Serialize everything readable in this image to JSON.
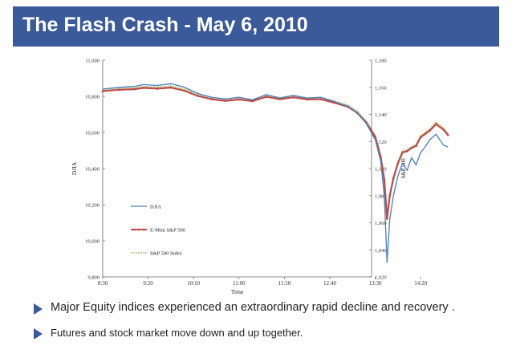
{
  "slide": {
    "title": "The Flash Crash - May 6, 2010",
    "bullets": [
      "Major Equity indices experienced an extraordinary rapid decline and recovery .",
      "Futures and stock market move down and up together."
    ],
    "accent_color": "#3b5a9a",
    "bullet_icon": "triangle-right-icon"
  },
  "chart_data": {
    "type": "line",
    "title": "",
    "xlabel": "Time",
    "ylabel": "DJIA",
    "y2label": "S&P 500",
    "x_ticks": [
      "8:30",
      "9:20",
      "10:10",
      "11:00",
      "11:50",
      "12:40",
      "13:30",
      "14:20"
    ],
    "ylim": [
      9800,
      11000
    ],
    "y_ticks": [
      "9,800",
      "10,000",
      "10,200",
      "10,400",
      "10,600",
      "10,800",
      "11,000"
    ],
    "y2lim": [
      1020,
      1180
    ],
    "y2_ticks": [
      "1,020",
      "1,040",
      "1,060",
      "1,080",
      "1,100",
      "1,120",
      "1,140",
      "1,160",
      "1,180"
    ],
    "grid": false,
    "legend_position": "lower-left",
    "series": [
      {
        "name": "DJIA",
        "axis": "left",
        "color": "#4a7ebb",
        "style": "solid",
        "points": [
          [
            "8:30",
            10840
          ],
          [
            "8:48",
            10850
          ],
          [
            "9:05",
            10855
          ],
          [
            "9:15",
            10865
          ],
          [
            "9:30",
            10860
          ],
          [
            "9:45",
            10870
          ],
          [
            "10:00",
            10850
          ],
          [
            "10:15",
            10815
          ],
          [
            "10:30",
            10795
          ],
          [
            "10:45",
            10785
          ],
          [
            "11:00",
            10795
          ],
          [
            "11:15",
            10780
          ],
          [
            "11:30",
            10810
          ],
          [
            "11:45",
            10790
          ],
          [
            "12:00",
            10805
          ],
          [
            "12:15",
            10790
          ],
          [
            "12:30",
            10795
          ],
          [
            "12:45",
            10770
          ],
          [
            "13:00",
            10745
          ],
          [
            "13:10",
            10710
          ],
          [
            "13:20",
            10650
          ],
          [
            "13:30",
            10560
          ],
          [
            "13:36",
            10440
          ],
          [
            "13:40",
            10250
          ],
          [
            "13:43",
            9880
          ],
          [
            "13:46",
            10120
          ],
          [
            "13:50",
            10250
          ],
          [
            "13:55",
            10360
          ],
          [
            "14:00",
            10430
          ],
          [
            "14:05",
            10390
          ],
          [
            "14:10",
            10460
          ],
          [
            "14:15",
            10420
          ],
          [
            "14:20",
            10490
          ],
          [
            "14:25",
            10520
          ],
          [
            "14:30",
            10560
          ],
          [
            "14:37",
            10590
          ],
          [
            "14:45",
            10530
          ],
          [
            "14:50",
            10520
          ]
        ]
      },
      {
        "name": "E-Mini S&P 500",
        "axis": "right",
        "color": "#be4b48",
        "style": "solid-markers",
        "points": [
          [
            "8:30",
            1157.2
          ],
          [
            "8:48",
            1158.2
          ],
          [
            "9:05",
            1158.6
          ],
          [
            "9:15",
            1159.6
          ],
          [
            "9:30",
            1159.0
          ],
          [
            "9:45",
            1159.8
          ],
          [
            "10:00",
            1157.4
          ],
          [
            "10:15",
            1153.6
          ],
          [
            "10:30",
            1151.2
          ],
          [
            "10:45",
            1150.0
          ],
          [
            "11:00",
            1151.0
          ],
          [
            "11:15",
            1149.8
          ],
          [
            "11:30",
            1153.0
          ],
          [
            "11:45",
            1151.2
          ],
          [
            "12:00",
            1152.6
          ],
          [
            "12:15",
            1151.0
          ],
          [
            "12:30",
            1151.2
          ],
          [
            "12:45",
            1148.6
          ],
          [
            "13:00",
            1145.6
          ],
          [
            "13:10",
            1141.2
          ],
          [
            "13:20",
            1134.0
          ],
          [
            "13:30",
            1123.4
          ],
          [
            "13:36",
            1108.4
          ],
          [
            "13:40",
            1091.6
          ],
          [
            "13:43",
            1063.0
          ],
          [
            "13:46",
            1080.0
          ],
          [
            "13:50",
            1092.8
          ],
          [
            "13:55",
            1104.0
          ],
          [
            "14:00",
            1112.0
          ],
          [
            "14:05",
            1112.8
          ],
          [
            "14:10",
            1115.2
          ],
          [
            "14:15",
            1116.8
          ],
          [
            "14:20",
            1123.2
          ],
          [
            "14:25",
            1125.6
          ],
          [
            "14:30",
            1128.0
          ],
          [
            "14:37",
            1132.8
          ],
          [
            "14:45",
            1128.8
          ],
          [
            "14:50",
            1124.8
          ]
        ]
      },
      {
        "name": "S&P 500 Index",
        "axis": "right",
        "color": "#98b954",
        "style": "dotted",
        "points": [
          [
            "8:30",
            1158.4
          ],
          [
            "8:48",
            1159.4
          ],
          [
            "9:05",
            1159.8
          ],
          [
            "9:15",
            1160.6
          ],
          [
            "9:30",
            1160.2
          ],
          [
            "9:45",
            1161.0
          ],
          [
            "10:00",
            1158.6
          ],
          [
            "10:15",
            1155.0
          ],
          [
            "10:30",
            1152.4
          ],
          [
            "10:45",
            1151.4
          ],
          [
            "11:00",
            1152.2
          ],
          [
            "11:15",
            1151.0
          ],
          [
            "11:30",
            1154.2
          ],
          [
            "11:45",
            1152.4
          ],
          [
            "12:00",
            1154.0
          ],
          [
            "12:15",
            1152.2
          ],
          [
            "12:30",
            1152.4
          ],
          [
            "12:45",
            1150.0
          ],
          [
            "13:00",
            1146.8
          ],
          [
            "13:10",
            1142.4
          ],
          [
            "13:20",
            1135.2
          ],
          [
            "13:30",
            1124.6
          ],
          [
            "13:36",
            1109.6
          ],
          [
            "13:40",
            1093.2
          ],
          [
            "13:43",
            1065.0
          ],
          [
            "13:46",
            1081.2
          ],
          [
            "13:50",
            1094.0
          ],
          [
            "13:55",
            1105.2
          ],
          [
            "14:00",
            1113.2
          ],
          [
            "14:05",
            1114.0
          ],
          [
            "14:10",
            1116.4
          ],
          [
            "14:15",
            1118.0
          ],
          [
            "14:20",
            1124.4
          ],
          [
            "14:25",
            1126.8
          ],
          [
            "14:30",
            1129.4
          ],
          [
            "14:37",
            1134.4
          ],
          [
            "14:45",
            1130.0
          ],
          [
            "14:50",
            1126.0
          ]
        ]
      }
    ]
  }
}
